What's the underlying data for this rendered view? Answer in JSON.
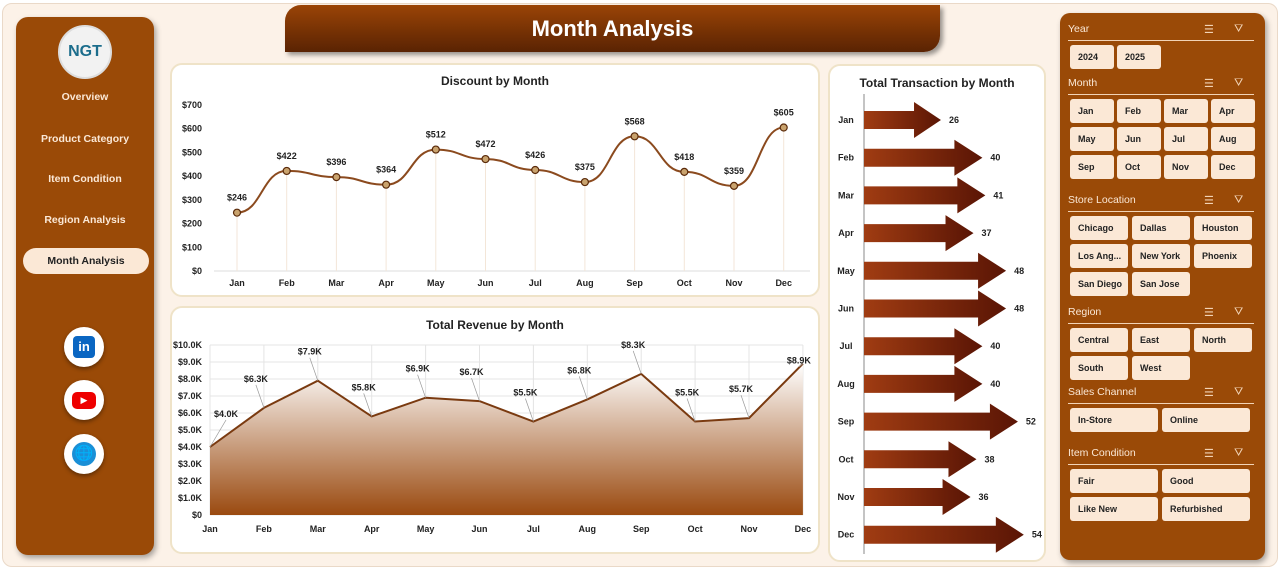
{
  "title": "Month Analysis",
  "logo": {
    "text": "NGT"
  },
  "nav": [
    "Overview",
    "Product Category",
    "Item Condition",
    "Region Analysis",
    "Month Analysis"
  ],
  "active_nav": "Month Analysis",
  "social": [
    "linkedin-icon",
    "youtube-icon",
    "globe-icon"
  ],
  "colors": {
    "sidebar": "#9a4a07",
    "accent": "#8b3a06",
    "button": "#fbe8d6",
    "arrow": "#6b1f08"
  },
  "slicers": [
    {
      "title": "Year",
      "items": [
        "2024",
        "2025"
      ]
    },
    {
      "title": "Month",
      "items": [
        "Jan",
        "Feb",
        "Mar",
        "Apr",
        "May",
        "Jun",
        "Jul",
        "Aug",
        "Sep",
        "Oct",
        "Nov",
        "Dec"
      ]
    },
    {
      "title": "Store Location",
      "items": [
        "Chicago",
        "Dallas",
        "Houston",
        "Los Ang...",
        "New York",
        "Phoenix",
        "San Diego",
        "San Jose"
      ]
    },
    {
      "title": "Region",
      "items": [
        "Central",
        "East",
        "North",
        "South",
        "West"
      ]
    },
    {
      "title": "Sales Channel",
      "items": [
        "In-Store",
        "Online"
      ]
    },
    {
      "title": "Item Condition",
      "items": [
        "Fair",
        "Good",
        "Like New",
        "Refurbished"
      ]
    }
  ],
  "chart_data": [
    {
      "type": "line",
      "title": "Discount by Month",
      "categories": [
        "Jan",
        "Feb",
        "Mar",
        "Apr",
        "May",
        "Jun",
        "Jul",
        "Aug",
        "Sep",
        "Oct",
        "Nov",
        "Dec"
      ],
      "values": [
        246,
        422,
        396,
        364,
        512,
        472,
        426,
        375,
        568,
        418,
        359,
        605
      ],
      "labels": [
        "$246",
        "$422",
        "$396",
        "$364",
        "$512",
        "$472",
        "$426",
        "$375",
        "$568",
        "$418",
        "$359",
        "$605"
      ],
      "yticks": [
        "$0",
        "$100",
        "$200",
        "$300",
        "$400",
        "$500",
        "$600",
        "$700"
      ],
      "ylim": [
        0,
        700
      ],
      "smooth": true
    },
    {
      "type": "area",
      "title": "Total Revenue by Month",
      "categories": [
        "Jan",
        "Feb",
        "Mar",
        "Apr",
        "May",
        "Jun",
        "Jul",
        "Aug",
        "Sep",
        "Oct",
        "Nov",
        "Dec"
      ],
      "values": [
        4000,
        6300,
        7900,
        5800,
        6900,
        6700,
        5500,
        6800,
        8300,
        5500,
        5700,
        8900
      ],
      "labels": [
        "$4.0K",
        "$6.3K",
        "$7.9K",
        "$5.8K",
        "$6.9K",
        "$6.7K",
        "$5.5K",
        "$6.8K",
        "$8.3K",
        "$5.5K",
        "$5.7K",
        "$8.9K"
      ],
      "yticks": [
        "$0",
        "$1.0K",
        "$2.0K",
        "$3.0K",
        "$4.0K",
        "$5.0K",
        "$6.0K",
        "$7.0K",
        "$8.0K",
        "$9.0K",
        "$10.0K"
      ],
      "ylim": [
        0,
        10000
      ],
      "grid": true
    },
    {
      "type": "bar",
      "orientation": "horizontal",
      "marker": "arrow",
      "title": "Total Transaction by Month",
      "categories": [
        "Jan",
        "Feb",
        "Mar",
        "Apr",
        "May",
        "Jun",
        "Jul",
        "Aug",
        "Sep",
        "Oct",
        "Nov",
        "Dec"
      ],
      "values": [
        26,
        40,
        41,
        37,
        48,
        48,
        40,
        40,
        52,
        38,
        36,
        54
      ]
    }
  ]
}
